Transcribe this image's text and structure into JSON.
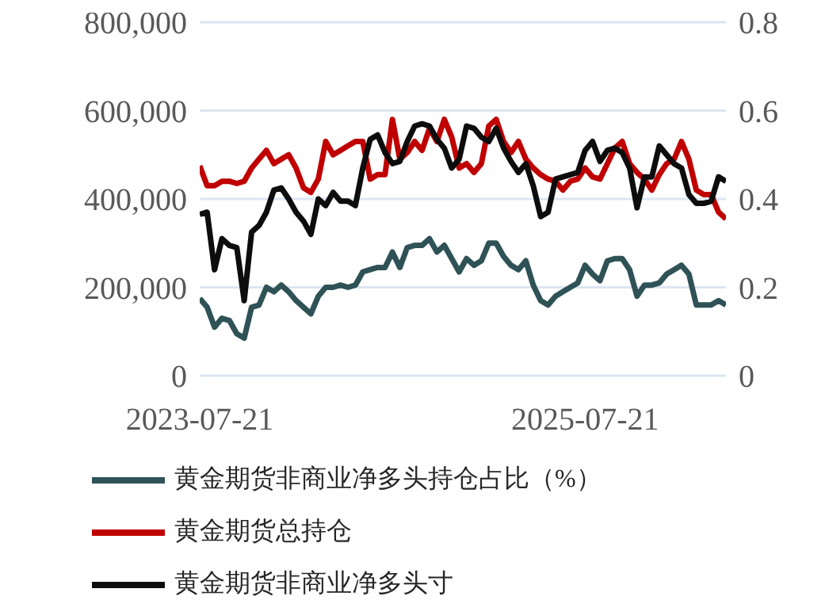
{
  "chart_data": {
    "type": "line",
    "categories": [
      "2023-07-21",
      null,
      null,
      null,
      null,
      null,
      null,
      null,
      null,
      null,
      null,
      null,
      null,
      null,
      null,
      null,
      null,
      null,
      null,
      null,
      null,
      null,
      null,
      null,
      null,
      null,
      null,
      null,
      null,
      null,
      null,
      null,
      null,
      null,
      null,
      null,
      null,
      null,
      null,
      null,
      null,
      null,
      null,
      null,
      null,
      null,
      null,
      null,
      null,
      null,
      null,
      null,
      "2025-07-21",
      null,
      null,
      null,
      null,
      null,
      null,
      null,
      null,
      null,
      null,
      null,
      null,
      null,
      null,
      null,
      null,
      null,
      null,
      null
    ],
    "series": [
      {
        "name": "黄金期货非商业净多头持仓占比（%）",
        "color": "#2f5257",
        "axis": "y2",
        "values": [
          0.175,
          0.155,
          0.11,
          0.13,
          0.125,
          0.095,
          0.085,
          0.155,
          0.16,
          0.2,
          0.19,
          0.205,
          0.19,
          0.17,
          0.155,
          0.14,
          0.18,
          0.2,
          0.2,
          0.205,
          0.2,
          0.205,
          0.235,
          0.24,
          0.245,
          0.245,
          0.28,
          0.245,
          0.29,
          0.295,
          0.295,
          0.31,
          0.28,
          0.295,
          0.265,
          0.235,
          0.265,
          0.25,
          0.26,
          0.3,
          0.3,
          0.27,
          0.25,
          0.24,
          0.26,
          0.205,
          0.17,
          0.16,
          0.18,
          0.19,
          0.2,
          0.21,
          0.25,
          0.23,
          0.215,
          0.26,
          0.265,
          0.265,
          0.24,
          0.18,
          0.205,
          0.205,
          0.21,
          0.23,
          0.24,
          0.25,
          0.23,
          0.16,
          0.16,
          0.16,
          0.17,
          0.16
        ]
      },
      {
        "name": "黄金期货总持仓",
        "color": "#c00000",
        "values": [
          475000,
          430000,
          430000,
          440000,
          440000,
          435000,
          440000,
          470000,
          490000,
          510000,
          480000,
          490000,
          500000,
          470000,
          425000,
          415000,
          445000,
          530000,
          500000,
          510000,
          520000,
          530000,
          530000,
          445000,
          455000,
          455000,
          580000,
          490000,
          505000,
          530000,
          510000,
          560000,
          530000,
          580000,
          540000,
          470000,
          480000,
          460000,
          480000,
          565000,
          580000,
          530000,
          505000,
          530000,
          490000,
          470000,
          455000,
          445000,
          440000,
          420000,
          440000,
          445000,
          470000,
          450000,
          445000,
          480000,
          515000,
          530000,
          480000,
          460000,
          445000,
          420000,
          455000,
          480000,
          490000,
          530000,
          490000,
          420000,
          410000,
          410000,
          370000,
          355000
        ]
      },
      {
        "name": "黄金期货非商业净多头寸",
        "color": "#0d0d0d",
        "values": [
          365000,
          370000,
          240000,
          310000,
          295000,
          290000,
          170000,
          325000,
          340000,
          370000,
          420000,
          425000,
          400000,
          370000,
          350000,
          320000,
          400000,
          385000,
          415000,
          395000,
          395000,
          385000,
          470000,
          535000,
          545000,
          505000,
          480000,
          485000,
          530000,
          565000,
          570000,
          565000,
          535000,
          515000,
          470000,
          490000,
          565000,
          560000,
          540000,
          530000,
          560000,
          515000,
          485000,
          460000,
          480000,
          430000,
          360000,
          370000,
          445000,
          450000,
          455000,
          460000,
          510000,
          530000,
          485000,
          510000,
          515000,
          505000,
          470000,
          380000,
          450000,
          450000,
          520000,
          500000,
          480000,
          470000,
          410000,
          390000,
          390000,
          395000,
          450000,
          440000
        ]
      }
    ],
    "ylim": [
      0,
      800000
    ],
    "yticks": [
      0,
      {
        "value": 200000,
        "label": "200,000"
      },
      {
        "value": 400000,
        "label": "400,000"
      },
      {
        "value": 600000,
        "label": "600,000"
      },
      {
        "value": 800000,
        "label": "800,000"
      }
    ],
    "y2lim": [
      0,
      0.8
    ],
    "y2ticks": [
      0,
      0.2,
      0.4,
      0.6,
      0.8
    ],
    "grid": "y",
    "legend": "bottom",
    "marker": "none",
    "line_style": "solid"
  }
}
